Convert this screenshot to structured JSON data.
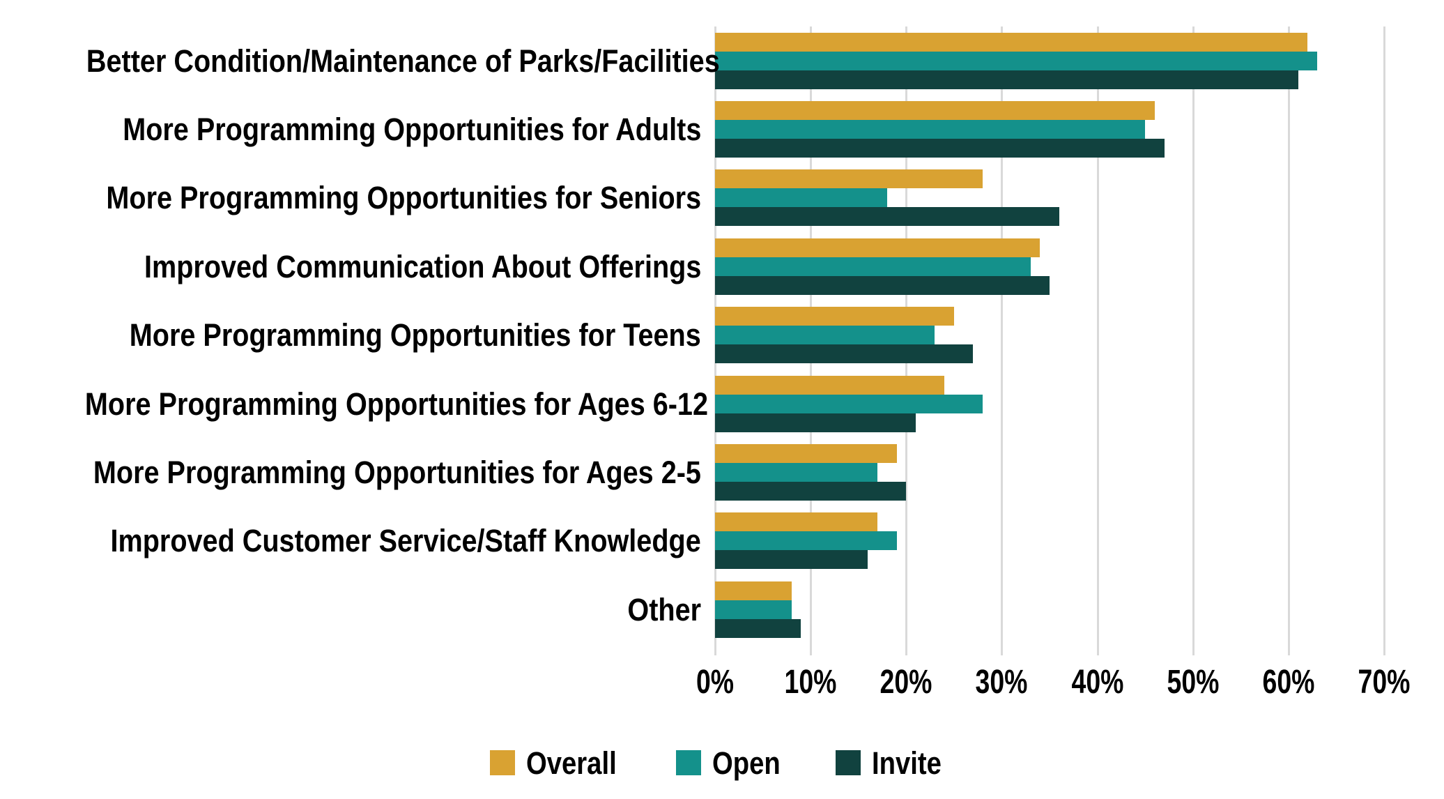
{
  "chart_data": {
    "type": "bar",
    "orientation": "horizontal",
    "title": "",
    "xlabel": "",
    "ylabel": "",
    "value_unit": "%",
    "xlim": [
      0,
      70
    ],
    "x_ticks": [
      "0%",
      "10%",
      "20%",
      "30%",
      "40%",
      "50%",
      "60%",
      "70%"
    ],
    "grid": "vertical",
    "gridline_color": "#D9D9D9",
    "legend_position": "bottom",
    "categories": [
      "Better Condition/Maintenance of Parks/Facilities",
      "More Programming Opportunities for Adults",
      "More Programming Opportunities for Seniors",
      "Improved Communication About Offerings",
      "More Programming Opportunities for Teens",
      "More Programming Opportunities for Ages 6-12",
      "More Programming Opportunities for Ages 2-5",
      "Improved Customer Service/Staff Knowledge",
      "Other"
    ],
    "series": [
      {
        "name": "Overall",
        "color": "#D9A232",
        "values": [
          62,
          46,
          28,
          34,
          25,
          24,
          19,
          17,
          8
        ]
      },
      {
        "name": "Open",
        "color": "#14918B",
        "values": [
          63,
          45,
          18,
          33,
          23,
          28,
          17,
          19,
          8
        ]
      },
      {
        "name": "Invite",
        "color": "#11423F",
        "values": [
          61,
          47,
          36,
          35,
          27,
          21,
          20,
          16,
          9
        ]
      }
    ],
    "colors": {
      "background": "#FFFFFF",
      "text": "#000000",
      "gridline": "#D9D9D9"
    }
  }
}
